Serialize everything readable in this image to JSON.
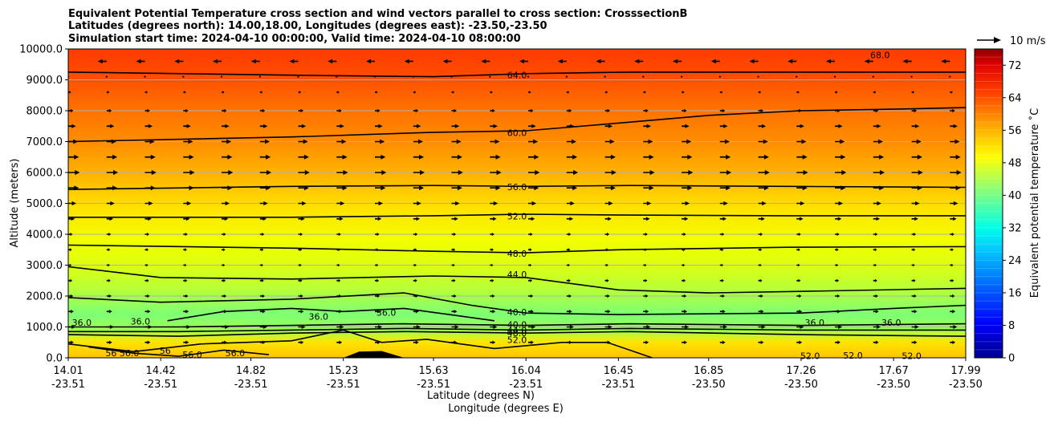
{
  "chart_data": {
    "type": "heatmap",
    "title_lines": [
      "Equivalent Potential Temperature cross section and wind vectors parallel to cross section: CrosssectionB",
      "Latitudes (degrees north): 14.00,18.00, Longitudes (degrees east): -23.50,-23.50",
      "Simulation start time: 2024-04-10 00:00:00, Valid time: 2024-04-10 08:00:00"
    ],
    "xlabel_lines": [
      "Latitude (degrees N)",
      "Longitude (degrees E)"
    ],
    "ylabel": "Altitude (meters)",
    "ylim": [
      0,
      10000
    ],
    "y_ticks": [
      0,
      1000,
      2000,
      3000,
      4000,
      5000,
      6000,
      7000,
      8000,
      9000,
      10000
    ],
    "y_tick_labels": [
      "0.0",
      "1000.0",
      "2000.0",
      "3000.0",
      "4000.0",
      "5000.0",
      "6000.0",
      "7000.0",
      "8000.0",
      "9000.0",
      "10000.0"
    ],
    "xlim": [
      14.01,
      17.99
    ],
    "x_ticks": [
      14.01,
      14.42,
      14.82,
      15.23,
      15.63,
      16.04,
      16.45,
      16.85,
      17.26,
      17.67,
      17.99
    ],
    "x_tick_lat_labels": [
      "14.01",
      "14.42",
      "14.82",
      "15.23",
      "15.63",
      "16.04",
      "16.45",
      "16.85",
      "17.26",
      "17.67",
      "17.99"
    ],
    "x_tick_lon_labels": [
      "-23.51",
      "-23.51",
      "-23.51",
      "-23.51",
      "-23.51",
      "-23.51",
      "-23.51",
      "-23.50",
      "-23.50",
      "-23.50",
      "-23.50"
    ],
    "colorbar": {
      "label": "Equivalent potential temperature $^\\circ$C",
      "label_display": "Equivalent potential temperature ˚C",
      "range": [
        0,
        76
      ],
      "step": 2,
      "ticks": [
        0,
        8,
        16,
        24,
        32,
        40,
        48,
        56,
        64,
        72
      ],
      "tick_labels": [
        "0",
        "8",
        "16",
        "24",
        "32",
        "40",
        "48",
        "56",
        "64",
        "72"
      ]
    },
    "quiver_key": {
      "label": "10 m/s",
      "speed": 10
    },
    "contour_lines": [
      {
        "value": 64,
        "label": "64.0",
        "points": [
          [
            14.01,
            9250
          ],
          [
            15.0,
            9150
          ],
          [
            15.63,
            9100
          ],
          [
            16.04,
            9200
          ],
          [
            16.5,
            9250
          ],
          [
            17.2,
            9250
          ],
          [
            17.99,
            9250
          ]
        ]
      },
      {
        "value": 60,
        "label": "60.0",
        "points": [
          [
            14.01,
            7000
          ],
          [
            15.0,
            7150
          ],
          [
            15.63,
            7300
          ],
          [
            16.04,
            7350
          ],
          [
            16.45,
            7600
          ],
          [
            16.85,
            7850
          ],
          [
            17.26,
            8000
          ],
          [
            17.67,
            8050
          ],
          [
            17.99,
            8100
          ]
        ]
      },
      {
        "value": 56,
        "label": "56.0",
        "points": [
          [
            14.01,
            5450
          ],
          [
            15.0,
            5550
          ],
          [
            15.63,
            5580
          ],
          [
            16.04,
            5550
          ],
          [
            16.5,
            5580
          ],
          [
            17.2,
            5550
          ],
          [
            17.99,
            5520
          ]
        ]
      },
      {
        "value": 52,
        "label": "52.0",
        "points": [
          [
            14.01,
            4550
          ],
          [
            15.0,
            4550
          ],
          [
            15.63,
            4600
          ],
          [
            16.04,
            4650
          ],
          [
            16.5,
            4620
          ],
          [
            17.2,
            4600
          ],
          [
            17.99,
            4600
          ]
        ]
      },
      {
        "value": 48,
        "label": "48.0",
        "points": [
          [
            14.01,
            3650
          ],
          [
            15.0,
            3550
          ],
          [
            15.63,
            3450
          ],
          [
            16.04,
            3400
          ],
          [
            16.45,
            3500
          ],
          [
            17.2,
            3580
          ],
          [
            17.99,
            3600
          ]
        ]
      },
      {
        "value": 44,
        "label": "44.0",
        "points": [
          [
            14.01,
            2950
          ],
          [
            14.42,
            2600
          ],
          [
            15.0,
            2550
          ],
          [
            15.63,
            2650
          ],
          [
            16.04,
            2600
          ],
          [
            16.45,
            2200
          ],
          [
            16.85,
            2100
          ],
          [
            17.26,
            2150
          ],
          [
            17.99,
            2250
          ]
        ]
      },
      {
        "value": 40,
        "label": "40.0",
        "points": [
          [
            14.01,
            1950
          ],
          [
            14.42,
            1800
          ],
          [
            15.0,
            1900
          ],
          [
            15.5,
            2100
          ],
          [
            15.8,
            1700
          ],
          [
            16.04,
            1450
          ],
          [
            16.45,
            1400
          ],
          [
            17.26,
            1450
          ],
          [
            17.67,
            1600
          ],
          [
            17.99,
            1700
          ]
        ]
      },
      {
        "value": 36,
        "label": "36.0",
        "points": [
          [
            14.45,
            1200
          ],
          [
            14.7,
            1500
          ],
          [
            15.0,
            1600
          ],
          [
            15.23,
            1500
          ],
          [
            15.5,
            1600
          ],
          [
            15.7,
            1400
          ],
          [
            15.9,
            1200
          ]
        ]
      },
      {
        "value": 40,
        "label": "40.0",
        "points": [
          [
            14.01,
            1000
          ],
          [
            14.5,
            1000
          ],
          [
            15.0,
            1050
          ],
          [
            15.5,
            1100
          ],
          [
            16.04,
            1050
          ],
          [
            16.5,
            1100
          ],
          [
            17.26,
            1050
          ],
          [
            17.99,
            1100
          ]
        ]
      },
      {
        "value": 44,
        "label": "44.0",
        "points": [
          [
            14.01,
            850
          ],
          [
            14.5,
            850
          ],
          [
            15.0,
            900
          ],
          [
            15.5,
            950
          ],
          [
            16.04,
            900
          ],
          [
            16.5,
            950
          ],
          [
            17.26,
            900
          ],
          [
            17.99,
            900
          ]
        ]
      },
      {
        "value": 48,
        "label": "48.0",
        "points": [
          [
            14.01,
            750
          ],
          [
            14.5,
            700
          ],
          [
            15.0,
            800
          ],
          [
            15.5,
            850
          ],
          [
            16.04,
            800
          ],
          [
            16.5,
            850
          ],
          [
            17.26,
            750
          ],
          [
            17.99,
            700
          ]
        ]
      },
      {
        "value": 52,
        "label": "52.0",
        "points": [
          [
            14.01,
            450
          ],
          [
            14.3,
            200
          ],
          [
            14.6,
            450
          ],
          [
            15.0,
            550
          ],
          [
            15.23,
            900
          ],
          [
            15.4,
            500
          ],
          [
            15.6,
            600
          ],
          [
            15.9,
            300
          ],
          [
            16.2,
            500
          ],
          [
            16.4,
            500
          ],
          [
            16.6,
            0
          ]
        ]
      },
      {
        "value": 56,
        "label": "56.0",
        "points": [
          [
            14.1,
            350
          ],
          [
            14.3,
            150
          ],
          [
            14.5,
            50
          ],
          [
            14.7,
            250
          ],
          [
            14.9,
            100
          ]
        ]
      }
    ],
    "contour_labels": [
      {
        "text": "68.0",
        "lat": 17.61,
        "alt": 9800
      },
      {
        "text": "64.0",
        "lat": 16.0,
        "alt": 9160
      },
      {
        "text": "60.0",
        "lat": 16.0,
        "alt": 7290
      },
      {
        "text": "56.0",
        "lat": 16.0,
        "alt": 5530
      },
      {
        "text": "52.0",
        "lat": 16.0,
        "alt": 4580
      },
      {
        "text": "48.0",
        "lat": 16.0,
        "alt": 3380
      },
      {
        "text": "44.0",
        "lat": 16.0,
        "alt": 2700
      },
      {
        "text": "40.0",
        "lat": 16.0,
        "alt": 1480
      },
      {
        "text": "40.0",
        "lat": 16.0,
        "alt": 1080
      },
      {
        "text": "44.0",
        "lat": 16.0,
        "alt": 900
      },
      {
        "text": "48.0",
        "lat": 16.0,
        "alt": 800
      },
      {
        "text": "52.0",
        "lat": 16.0,
        "alt": 580
      },
      {
        "text": "36.0",
        "lat": 14.07,
        "alt": 1140
      },
      {
        "text": "36.0",
        "lat": 14.33,
        "alt": 1180
      },
      {
        "text": "36.0",
        "lat": 15.12,
        "alt": 1340
      },
      {
        "text": "36.0",
        "lat": 15.42,
        "alt": 1470
      },
      {
        "text": "36.0",
        "lat": 17.32,
        "alt": 1140
      },
      {
        "text": "36.0",
        "lat": 17.66,
        "alt": 1140
      },
      {
        "text": "56 56.0",
        "lat": 14.25,
        "alt": 160
      },
      {
        "text": "56",
        "lat": 14.44,
        "alt": 230
      },
      {
        "text": "56.0",
        "lat": 14.56,
        "alt": 110
      },
      {
        "text": "56.0",
        "lat": 14.75,
        "alt": 150
      },
      {
        "text": "52.0",
        "lat": 17.3,
        "alt": 60
      },
      {
        "text": "52.0",
        "lat": 17.49,
        "alt": 80
      },
      {
        "text": "52.0",
        "lat": 17.75,
        "alt": 70
      }
    ],
    "terrain": [
      [
        15.23,
        0
      ],
      [
        15.3,
        200
      ],
      [
        15.4,
        220
      ],
      [
        15.5,
        0
      ]
    ],
    "wind_by_altitude": [
      {
        "alt": 9600,
        "u": -4.8
      },
      {
        "alt": 9100,
        "u": -0.6
      },
      {
        "alt": 8600,
        "u": 1.5
      },
      {
        "alt": 8000,
        "u": 2.8
      },
      {
        "alt": 7500,
        "u": 4.2
      },
      {
        "alt": 7000,
        "u": 5.3
      },
      {
        "alt": 6500,
        "u": 5.8
      },
      {
        "alt": 6000,
        "u": 6.2
      },
      {
        "alt": 5500,
        "u": 5.8
      },
      {
        "alt": 5000,
        "u": 4.4
      },
      {
        "alt": 4500,
        "u": 3.6
      },
      {
        "alt": 4000,
        "u": 2.4
      },
      {
        "alt": 3500,
        "u": 2.0
      },
      {
        "alt": 3000,
        "u": 1.8
      },
      {
        "alt": 2500,
        "u": 2.2
      },
      {
        "alt": 2000,
        "u": 2.7
      },
      {
        "alt": 1500,
        "u": 3.0
      },
      {
        "alt": 1000,
        "u": 4.0
      },
      {
        "alt": 500,
        "u": 3.0
      }
    ],
    "wind_lat_columns": [
      14.01,
      14.18,
      14.35,
      14.52,
      14.69,
      14.86,
      15.03,
      15.2,
      15.37,
      15.54,
      15.71,
      15.88,
      16.05,
      16.22,
      16.39,
      16.56,
      16.73,
      16.9,
      17.07,
      17.24,
      17.41,
      17.58,
      17.75,
      17.92
    ]
  }
}
